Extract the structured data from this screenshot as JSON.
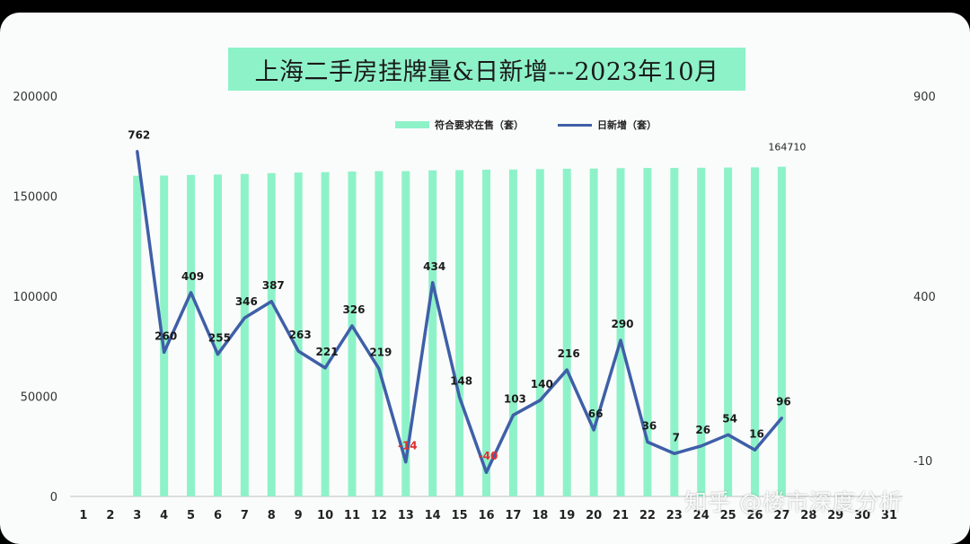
{
  "chart_data": {
    "type": "bar",
    "title": "上海二手房挂牌量&日新增---2023年10月",
    "categories": [
      "1",
      "2",
      "3",
      "4",
      "5",
      "6",
      "7",
      "8",
      "9",
      "10",
      "11",
      "12",
      "13",
      "14",
      "15",
      "16",
      "17",
      "18",
      "19",
      "20",
      "21",
      "22",
      "23",
      "24",
      "25",
      "26",
      "27",
      "28",
      "29",
      "30",
      "31"
    ],
    "series": [
      {
        "name": "符合要求在售（套）",
        "axis": "left",
        "type": "bar",
        "values": [
          null,
          null,
          160200,
          160300,
          160600,
          160800,
          161100,
          161500,
          161800,
          162000,
          162300,
          162500,
          162500,
          162900,
          163000,
          163200,
          163300,
          163500,
          163700,
          163800,
          164000,
          164100,
          164100,
          164200,
          164300,
          164400,
          164710,
          null,
          null,
          null,
          null
        ]
      },
      {
        "name": "日新增（套）",
        "axis": "right",
        "type": "line",
        "values": [
          null,
          null,
          762,
          260,
          409,
          255,
          346,
          387,
          263,
          221,
          326,
          219,
          -14,
          434,
          148,
          -40,
          103,
          140,
          216,
          66,
          290,
          36,
          7,
          26,
          54,
          16,
          96,
          null,
          null,
          null,
          null
        ]
      }
    ],
    "data_labels": {
      "bar_last": "164710",
      "line": [
        "762",
        "260",
        "409",
        "255",
        "346",
        "387",
        "263",
        "221",
        "326",
        "219",
        "-14",
        "434",
        "148",
        "-40",
        "103",
        "140",
        "216",
        "66",
        "290",
        "36",
        "7",
        "26",
        "54",
        "16",
        "96"
      ]
    },
    "left_axis": {
      "ticks": [
        "200000",
        "150000",
        "100000",
        "50000",
        "0"
      ],
      "ylim": [
        0,
        200000
      ]
    },
    "right_axis": {
      "ticks": [
        "900",
        "400",
        "-10"
      ],
      "ylim": [
        -100,
        900
      ]
    },
    "legend_position": "top",
    "colors": {
      "bar": "#8ef2c9",
      "line": "#3f5fa8",
      "negative_label": "#e03030"
    }
  },
  "watermark": "知乎 @楼市深度分析"
}
